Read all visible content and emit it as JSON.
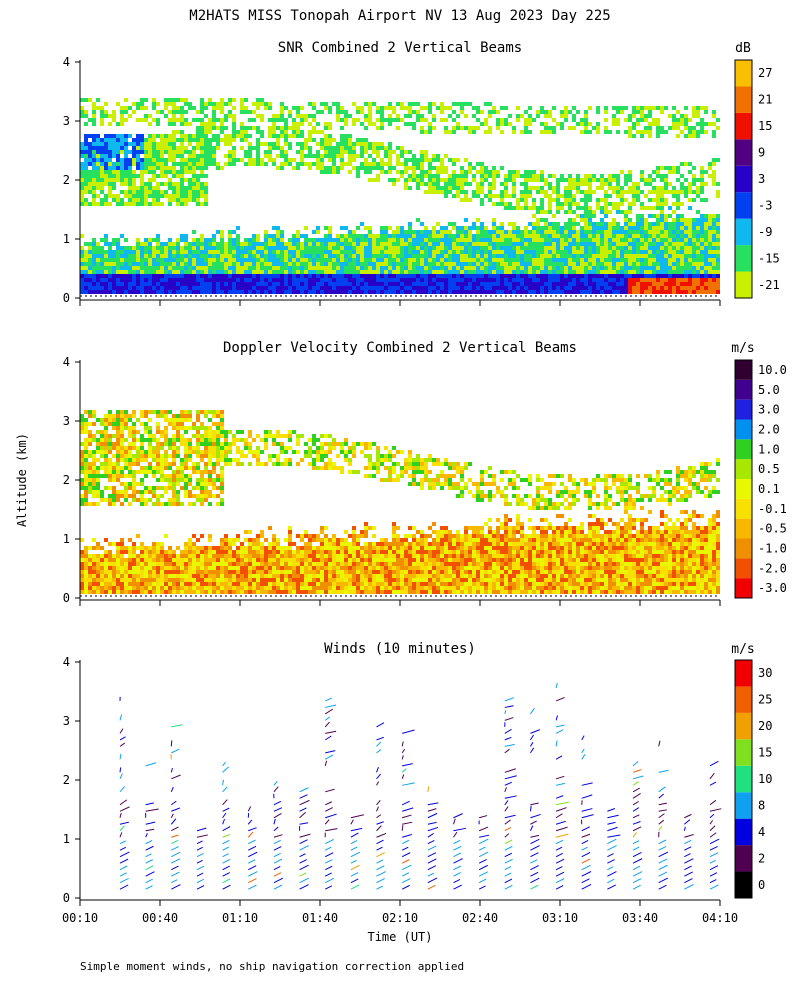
{
  "header": {
    "title": "M2HATS MISS Tonopah Airport NV  13 Aug 2023 Day 225"
  },
  "footer": {
    "note": "Simple moment winds, no ship navigation correction applied"
  },
  "chart_data": [
    {
      "type": "heatmap",
      "title": "SNR Combined 2 Vertical Beams",
      "xlabel": "Time (UT)",
      "ylabel": "Altitude (km)",
      "xlim": [
        "00:10",
        "04:10"
      ],
      "ylim": [
        0,
        4
      ],
      "y_ticks": [
        "0",
        "1",
        "2",
        "3",
        "4"
      ],
      "colorbar": {
        "units": "dB",
        "labels": [
          "-21",
          "-15",
          "-9",
          "-3",
          "3",
          "9",
          "15",
          "21",
          "27"
        ],
        "colors": [
          "#c8f000",
          "#28e060",
          "#10b8f0",
          "#0040f0",
          "#2800c8",
          "#500080",
          "#f01000",
          "#f07000",
          "#f8c000"
        ]
      }
    },
    {
      "type": "heatmap",
      "title": "Doppler Velocity Combined 2 Vertical Beams",
      "xlabel": "Time (UT)",
      "ylabel": "Altitude (km)",
      "xlim": [
        "00:10",
        "04:10"
      ],
      "ylim": [
        0,
        4
      ],
      "y_ticks": [
        "0",
        "1",
        "2",
        "3",
        "4"
      ],
      "colorbar": {
        "units": "m/s",
        "labels": [
          "-3.0",
          "-2.0",
          "-1.0",
          "-0.5",
          "-0.1",
          "0.1",
          "0.5",
          "1.0",
          "2.0",
          "3.0",
          "5.0",
          "10.0"
        ],
        "colors": [
          "#f00000",
          "#f05000",
          "#f09000",
          "#f8b800",
          "#f8e000",
          "#e8f800",
          "#a8e800",
          "#30d020",
          "#0090f0",
          "#2020e0",
          "#400090",
          "#300030"
        ]
      }
    },
    {
      "type": "scatter",
      "title": "Winds (10 minutes)",
      "xlabel": "Time (UT)",
      "ylabel": "Altitude (km)",
      "xlim": [
        "00:10",
        "04:10"
      ],
      "ylim": [
        0,
        4
      ],
      "x_ticks": [
        "00:10",
        "00:40",
        "01:10",
        "01:40",
        "02:10",
        "02:40",
        "03:10",
        "03:40",
        "04:10"
      ],
      "y_ticks": [
        "0",
        "1",
        "2",
        "3",
        "4"
      ],
      "colorbar": {
        "units": "m/s",
        "labels": [
          "0",
          "2",
          "4",
          "8",
          "10",
          "15",
          "20",
          "25",
          "30"
        ],
        "colors": [
          "#000000",
          "#500050",
          "#0000e0",
          "#10a0f0",
          "#20e080",
          "#80e020",
          "#f0a000",
          "#f06000",
          "#f00000"
        ]
      }
    }
  ],
  "shared": {
    "y_axis_label": "Altitude (km)",
    "x_axis_label": "Time (UT)"
  }
}
